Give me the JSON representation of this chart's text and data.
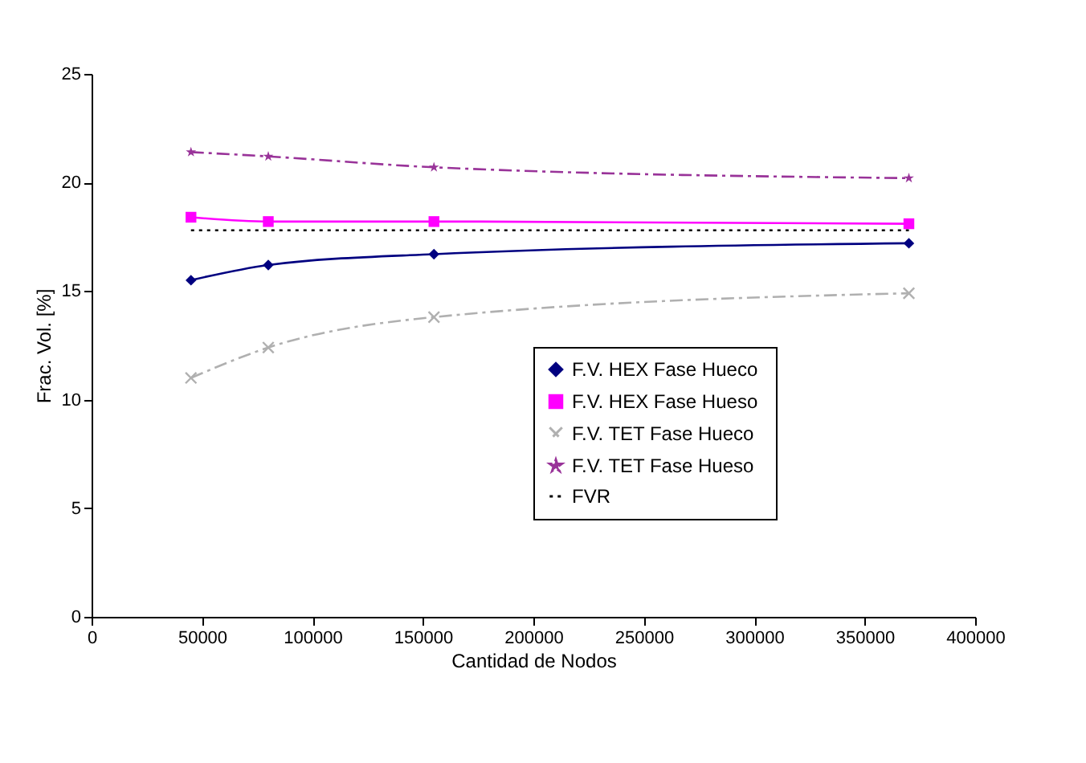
{
  "chart_data": {
    "type": "line",
    "xlabel": "Cantidad de Nodos",
    "ylabel": "Frac. Vol.  [%]",
    "xlim": [
      0,
      400000
    ],
    "xticks": [
      0,
      50000,
      100000,
      150000,
      200000,
      250000,
      300000,
      350000,
      400000
    ],
    "ylim": [
      0,
      25
    ],
    "yticks": [
      0,
      5,
      10,
      15,
      20,
      25
    ],
    "grid": false,
    "legend": "bottom right",
    "x": [
      45000,
      80000,
      155000,
      370000
    ],
    "series": [
      {
        "name": "F.V.  HEX Fase Hueco",
        "color": "#000080",
        "marker": "diamond",
        "line_style": "solid",
        "values": [
          15.5,
          16.2,
          16.7,
          17.2
        ]
      },
      {
        "name": "F.V.  HEX Fase Hueso",
        "color": "#ff00ff",
        "marker": "square",
        "line_style": "solid",
        "values": [
          18.4,
          18.2,
          18.2,
          18.1
        ]
      },
      {
        "name": "F.V.  TET Fase Hueco",
        "color": "#b0b0b0",
        "marker": "cross",
        "line_style": "dashed",
        "values": [
          11.0,
          12.4,
          13.8,
          14.9
        ]
      },
      {
        "name": "F.V.  TET Fase Hueso",
        "color": "#993399",
        "marker": "star",
        "line_style": "dashed",
        "values": [
          21.4,
          21.2,
          20.7,
          20.2
        ]
      },
      {
        "name": "FVR",
        "color": "#000000",
        "marker": "none",
        "line_style": "dotted",
        "x": [
          45000,
          370000
        ],
        "values": [
          17.8,
          17.8
        ]
      }
    ]
  }
}
